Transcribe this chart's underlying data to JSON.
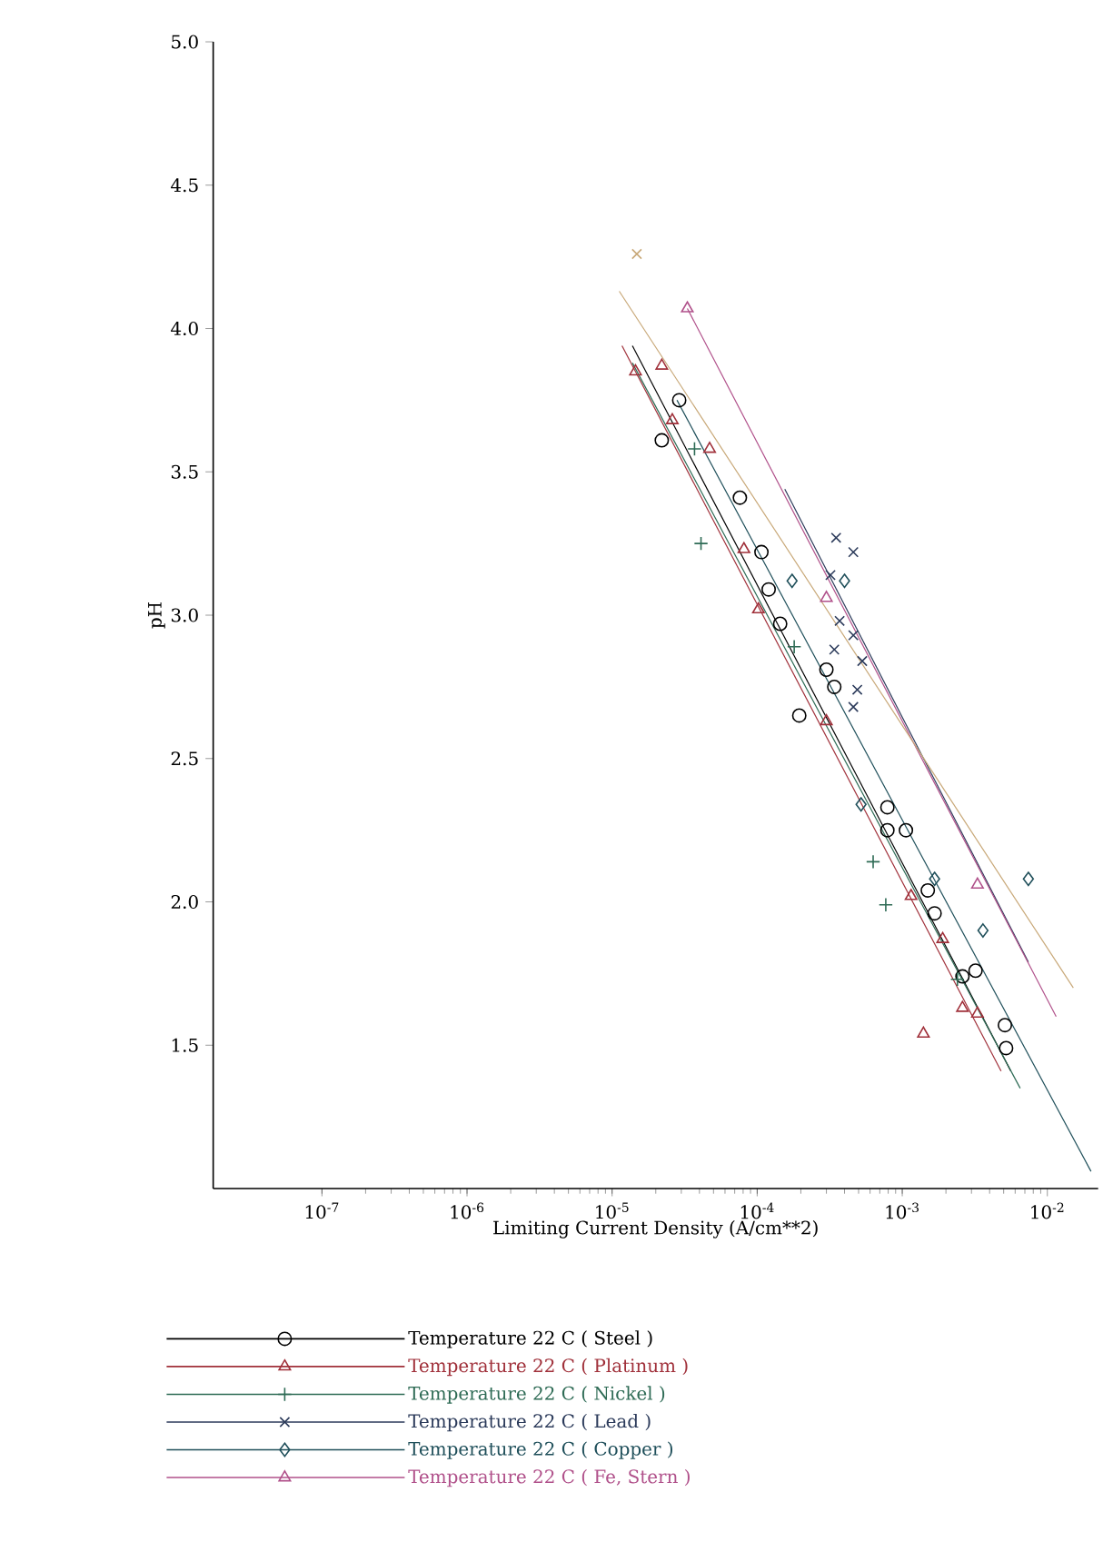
{
  "chart_data": {
    "type": "scatter",
    "xlabel": "Limiting Current Density (A/cm**2)",
    "ylabel": "pH",
    "log": "x",
    "xlim": [
      1.78e-08,
      0.0224
    ],
    "ylim": [
      1.0,
      5.0
    ],
    "xticks": [
      {
        "value": 1e-07,
        "label": "10$^{-7}$"
      },
      {
        "value": 1e-06,
        "label": "10$^{-6}$"
      },
      {
        "value": 1e-05,
        "label": "10$^{-5}$"
      },
      {
        "value": 0.0001,
        "label": "10$^{-4}$"
      },
      {
        "value": 0.001,
        "label": "10$^{-3}$"
      },
      {
        "value": 0.01,
        "label": "10$^{-2}$"
      }
    ],
    "yticks": [
      {
        "value": 1.5,
        "label": "1.5"
      },
      {
        "value": 2,
        "label": "2.0"
      },
      {
        "value": 2.5,
        "label": "2.5"
      },
      {
        "value": 3,
        "label": "3.0"
      },
      {
        "value": 3.5,
        "label": "3.5"
      },
      {
        "value": 4,
        "label": "4.0"
      },
      {
        "value": 4.5,
        "label": "4.5"
      },
      {
        "value": 5,
        "label": "5.0"
      }
    ],
    "legend": "bottom",
    "series": [
      {
        "name": "Temperature 22 C ( Steel )",
        "marker": "circle",
        "color": "#000000",
        "x": [
          2.9e-05,
          2.2e-05,
          7.6e-05,
          0.000107,
          0.00012,
          0.000144,
          0.000195,
          0.0003,
          0.00034,
          0.00079,
          0.00079,
          0.00106,
          0.0015,
          0.00167,
          0.0026,
          0.0032,
          0.0051,
          0.0052
        ],
        "values": [
          3.75,
          3.61,
          3.41,
          3.22,
          3.09,
          2.97,
          2.65,
          2.81,
          2.75,
          2.33,
          2.25,
          2.25,
          2.04,
          1.96,
          1.74,
          1.76,
          1.57,
          1.49
        ]
      },
      {
        "name": "Temperature 22 C ( Platinum )",
        "marker": "triangle",
        "color": "#a0303a",
        "x": [
          1.45e-05,
          2.2e-05,
          2.6e-05,
          4.7e-05,
          8.1e-05,
          0.000102,
          0.0003,
          0.00115,
          0.0019,
          0.0014,
          0.0026,
          0.0033
        ],
        "values": [
          3.85,
          3.87,
          3.68,
          3.58,
          3.23,
          3.02,
          2.63,
          2.02,
          1.87,
          1.54,
          1.63,
          1.61
        ]
      },
      {
        "name": "Temperature 22 C ( Nickel )",
        "marker": "plus",
        "color": "#2e6b55",
        "x": [
          3.7e-05,
          4.1e-05,
          0.00018,
          0.00063,
          0.00077,
          0.0024
        ],
        "values": [
          3.58,
          3.25,
          2.89,
          2.14,
          1.99,
          1.73
        ]
      },
      {
        "name": "Temperature 22 C ( Lead )",
        "marker": "cross",
        "color": "#2b3a5a",
        "x": [
          0.00035,
          0.00046,
          0.00032,
          0.00037,
          0.00046,
          0.00053,
          0.00034,
          0.00049,
          0.00046
        ],
        "values": [
          3.27,
          3.22,
          3.14,
          2.98,
          2.93,
          2.84,
          2.88,
          2.74,
          2.68
        ]
      },
      {
        "name": "Temperature 22 C ( Copper )",
        "marker": "diamond",
        "color": "#1f4f5a",
        "x": [
          0.000174,
          0.0004,
          0.00052,
          0.00167,
          0.0036,
          0.0074
        ],
        "values": [
          3.12,
          3.12,
          2.34,
          2.08,
          1.9,
          2.08
        ]
      },
      {
        "name": "Temperature 22 C ( Fe, Stern )",
        "marker": "triangle",
        "color": "#b0508a",
        "x": [
          3.3e-05,
          0.0003,
          0.0033
        ],
        "values": [
          4.07,
          3.06,
          2.06
        ]
      },
      {
        "marker": "cross",
        "color": "#c8a878",
        "x": [
          1.48e-05
        ],
        "values": [
          4.26
        ]
      },
      {
        "type": "line",
        "color": "#000000",
        "x": [
          1.38e-05,
          0.0056
        ],
        "values": [
          3.94,
          1.41
        ]
      },
      {
        "type": "line",
        "color": "#a0303a",
        "x": [
          1.17e-05,
          0.0048
        ],
        "values": [
          3.94,
          1.41
        ]
      },
      {
        "type": "line",
        "color": "#2e6b55",
        "x": [
          1.38e-05,
          0.0065
        ],
        "values": [
          3.88,
          1.35
        ]
      },
      {
        "type": "line",
        "color": "#2b3a5a",
        "x": [
          0.000155,
          0.0074
        ],
        "values": [
          3.44,
          1.79
        ]
      },
      {
        "type": "line",
        "color": "#1f4f5a",
        "x": [
          2.8e-05,
          0.02
        ],
        "values": [
          3.75,
          1.06
        ]
      },
      {
        "type": "line",
        "color": "#b0508a",
        "x": [
          3.3e-05,
          0.0115
        ],
        "values": [
          4.07,
          1.6
        ]
      },
      {
        "type": "line",
        "color": "#c8a878",
        "x": [
          1.12e-05,
          0.0151
        ],
        "values": [
          4.13,
          1.7
        ]
      }
    ]
  }
}
